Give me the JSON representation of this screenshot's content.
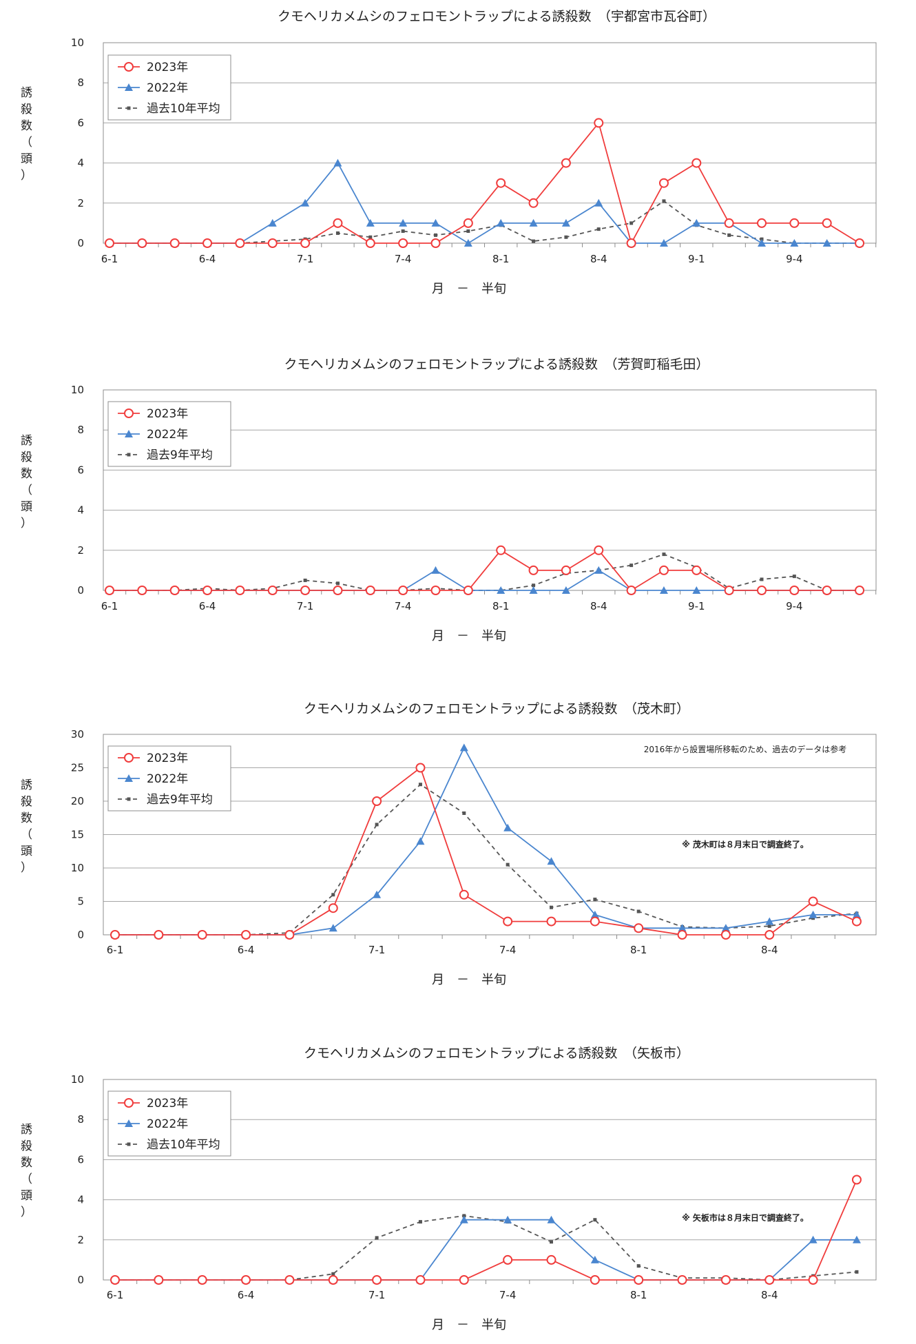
{
  "colors": {
    "y2023": "#f03c3c",
    "y2022": "#4a86cf",
    "avg": "#555555",
    "grid": "#a6a6a6",
    "frame": "#8c8c8c"
  },
  "ylabel": "誘殺数（頭）",
  "xlabel": "月　－　半旬",
  "chart_data": [
    {
      "type": "line",
      "title": "クモヘリカメムシのフェロモントラップによる誘殺数　（宇都宮市瓦谷町）",
      "ylim": [
        0,
        10
      ],
      "yticks": [
        0,
        2,
        4,
        6,
        8,
        10
      ],
      "x_count": 24,
      "x_tick_labels": [
        {
          "i": 0,
          "label": "6-1"
        },
        {
          "i": 3,
          "label": "6-4"
        },
        {
          "i": 6,
          "label": "7-1"
        },
        {
          "i": 9,
          "label": "7-4"
        },
        {
          "i": 12,
          "label": "8-1"
        },
        {
          "i": 15,
          "label": "8-4"
        },
        {
          "i": 18,
          "label": "9-1"
        },
        {
          "i": 21,
          "label": "9-4"
        }
      ],
      "legend_position": "top-left",
      "note": "",
      "note2": "",
      "series": [
        {
          "name": "2023年",
          "key": "y2023",
          "values": [
            0,
            0,
            0,
            0,
            0,
            0,
            0,
            1,
            0,
            0,
            0,
            1,
            3,
            2,
            4,
            6,
            0,
            3,
            4,
            1,
            1,
            1,
            1,
            0
          ]
        },
        {
          "name": "2022年",
          "key": "y2022",
          "values": [
            0,
            0,
            0,
            0,
            0,
            1,
            2,
            4,
            1,
            1,
            1,
            0,
            1,
            1,
            1,
            2,
            0,
            0,
            1,
            1,
            0,
            0,
            0,
            0
          ]
        },
        {
          "name": "過去10年平均",
          "key": "avg",
          "values": [
            0,
            0,
            0,
            0,
            0,
            0.1,
            0.2,
            0.5,
            0.3,
            0.6,
            0.4,
            0.6,
            0.9,
            0.1,
            0.3,
            0.7,
            1.0,
            2.1,
            0.9,
            0.4,
            0.2,
            0,
            0,
            0
          ]
        }
      ]
    },
    {
      "type": "line",
      "title": "クモヘリカメムシのフェロモントラップによる誘殺数　（芳賀町稲毛田）",
      "ylim": [
        0,
        10
      ],
      "yticks": [
        0,
        2,
        4,
        6,
        8,
        10
      ],
      "x_count": 24,
      "x_tick_labels": [
        {
          "i": 0,
          "label": "6-1"
        },
        {
          "i": 3,
          "label": "6-4"
        },
        {
          "i": 6,
          "label": "7-1"
        },
        {
          "i": 9,
          "label": "7-4"
        },
        {
          "i": 12,
          "label": "8-1"
        },
        {
          "i": 15,
          "label": "8-4"
        },
        {
          "i": 18,
          "label": "9-1"
        },
        {
          "i": 21,
          "label": "9-4"
        }
      ],
      "legend_position": "top-left",
      "note": "",
      "note2": "",
      "series": [
        {
          "name": "2023年",
          "key": "y2023",
          "values": [
            0,
            0,
            0,
            0,
            0,
            0,
            0,
            0,
            0,
            0,
            0,
            0,
            2,
            1,
            1,
            2,
            0,
            1,
            1,
            0,
            0,
            0,
            0,
            0
          ]
        },
        {
          "name": "2022年",
          "key": "y2022",
          "values": [
            0,
            0,
            0,
            0,
            0,
            0,
            0,
            0,
            0,
            0,
            1,
            0,
            0,
            0,
            0,
            1,
            0,
            0,
            0,
            0,
            0,
            0,
            0,
            0
          ]
        },
        {
          "name": "過去9年平均",
          "key": "avg",
          "values": [
            0,
            0,
            0,
            0.1,
            0,
            0.1,
            0.5,
            0.35,
            0,
            0,
            0.1,
            0,
            0,
            0.25,
            0.85,
            1.0,
            1.25,
            1.8,
            1.15,
            0.1,
            0.55,
            0.7,
            0,
            0
          ]
        }
      ]
    },
    {
      "type": "line",
      "title": "クモヘリカメムシのフェロモントラップによる誘殺数　（茂木町）",
      "ylim": [
        0,
        30
      ],
      "yticks": [
        0,
        5,
        10,
        15,
        20,
        25,
        30
      ],
      "x_count": 18,
      "x_tick_labels": [
        {
          "i": 0,
          "label": "6-1"
        },
        {
          "i": 3,
          "label": "6-4"
        },
        {
          "i": 6,
          "label": "7-1"
        },
        {
          "i": 9,
          "label": "7-4"
        },
        {
          "i": 12,
          "label": "8-1"
        },
        {
          "i": 15,
          "label": "8-4"
        }
      ],
      "legend_position": "top-left",
      "note": "2016年から設置場所移転のため、過去のデータは参考",
      "note2": "※ 茂木町は８月末日で調査終了。",
      "series": [
        {
          "name": "2023年",
          "key": "y2023",
          "values": [
            0,
            0,
            0,
            0,
            0,
            4,
            20,
            25,
            6,
            2,
            2,
            2,
            1,
            0,
            0,
            0,
            5,
            2
          ]
        },
        {
          "name": "2022年",
          "key": "y2022",
          "values": [
            0,
            0,
            0,
            0,
            0,
            1,
            6,
            14,
            28,
            16,
            11,
            3,
            1,
            1,
            1,
            2,
            3,
            3
          ]
        },
        {
          "name": "過去9年平均",
          "key": "avg",
          "values": [
            0,
            0,
            0,
            0,
            0.3,
            6,
            16.5,
            22.5,
            18.2,
            10.5,
            4.1,
            5.3,
            3.5,
            1.2,
            1.0,
            1.3,
            2.5,
            3.2
          ]
        }
      ]
    },
    {
      "type": "line",
      "title": "クモヘリカメムシのフェロモントラップによる誘殺数　（矢板市）",
      "ylim": [
        0,
        10
      ],
      "yticks": [
        0,
        2,
        4,
        6,
        8,
        10
      ],
      "x_count": 18,
      "x_tick_labels": [
        {
          "i": 0,
          "label": "6-1"
        },
        {
          "i": 3,
          "label": "6-4"
        },
        {
          "i": 6,
          "label": "7-1"
        },
        {
          "i": 9,
          "label": "7-4"
        },
        {
          "i": 12,
          "label": "8-1"
        },
        {
          "i": 15,
          "label": "8-4"
        }
      ],
      "legend_position": "top-left",
      "note": "",
      "note2": "※ 矢板市は８月末日で調査終了。",
      "series": [
        {
          "name": "2023年",
          "key": "y2023",
          "values": [
            0,
            0,
            0,
            0,
            0,
            0,
            0,
            0,
            0,
            1,
            1,
            0,
            0,
            0,
            0,
            0,
            0,
            5
          ]
        },
        {
          "name": "2022年",
          "key": "y2022",
          "values": [
            0,
            0,
            0,
            0,
            0,
            0,
            0,
            0,
            3,
            3,
            3,
            1,
            0,
            0,
            0,
            0,
            2,
            2
          ]
        },
        {
          "name": "過去10年平均",
          "key": "avg",
          "values": [
            0,
            0,
            0,
            0,
            0,
            0.3,
            2.1,
            2.9,
            3.2,
            2.9,
            1.9,
            3.0,
            0.7,
            0.1,
            0.1,
            0,
            0.2,
            0.4
          ]
        }
      ]
    }
  ]
}
